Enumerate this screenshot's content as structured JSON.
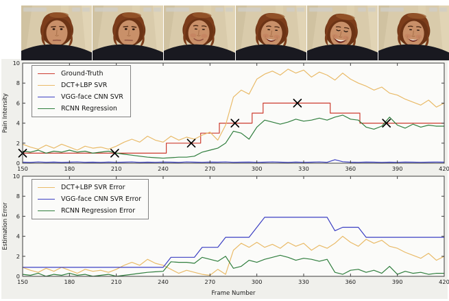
{
  "video_strip": {
    "description": "six cropped video frames of a woman's face showing increasing pain expression",
    "frames": [
      {
        "tilt": 0,
        "dx": 0,
        "dy": 0,
        "eyes": "open",
        "mouth": "neutral",
        "brow": "low"
      },
      {
        "tilt": 2,
        "dx": 1,
        "dy": 0,
        "eyes": "open",
        "mouth": "neutral",
        "brow": "low"
      },
      {
        "tilt": 3,
        "dx": -1,
        "dy": 0,
        "eyes": "narrow",
        "mouth": "smile",
        "brow": "neutral"
      },
      {
        "tilt": 5,
        "dx": 0,
        "dy": 1,
        "eyes": "narrow",
        "mouth": "open-smile",
        "brow": "neutral"
      },
      {
        "tilt": 8,
        "dx": -3,
        "dy": 2,
        "eyes": "closed",
        "mouth": "open-smile-big",
        "brow": "neutral"
      },
      {
        "tilt": 4,
        "dx": -1,
        "dy": 1,
        "eyes": "narrow",
        "mouth": "open-smile",
        "brow": "neutral"
      }
    ]
  },
  "chart_data": [
    {
      "type": "line",
      "title": "",
      "xlabel": "",
      "ylabel": "Pain Intensity",
      "xlim": [
        150,
        420
      ],
      "ylim": [
        0,
        10
      ],
      "xticks": [
        150,
        180,
        210,
        240,
        270,
        300,
        330,
        360,
        390,
        420
      ],
      "yticks": [
        0,
        2,
        4,
        6,
        8,
        10
      ],
      "grid": false,
      "legend_position": "upper left",
      "x_start": 150,
      "x_step": 5,
      "series": [
        {
          "name": "Ground-Truth",
          "color": "#cc3b2e",
          "style": "step",
          "x": [
            150,
            242,
            242,
            264,
            264,
            276,
            276,
            297,
            297,
            304,
            304,
            347,
            347,
            366,
            366,
            420
          ],
          "y": [
            1,
            1,
            2,
            2,
            3,
            3,
            4,
            4,
            5,
            5,
            6,
            6,
            5,
            5,
            4,
            4
          ]
        },
        {
          "name": "DCT+LBP SVR",
          "color": "#e9ba67",
          "values": [
            1.9,
            1.6,
            1.4,
            1.8,
            1.5,
            1.9,
            1.6,
            1.3,
            1.7,
            1.5,
            1.6,
            1.4,
            1.7,
            2.1,
            2.4,
            2.1,
            2.7,
            2.3,
            2.1,
            2.7,
            2.3,
            2.6,
            2.4,
            2.8,
            3.1,
            2.3,
            3.8,
            6.6,
            7.3,
            6.9,
            8.4,
            8.9,
            9.2,
            8.8,
            9.4,
            9.0,
            9.3,
            8.6,
            9.1,
            8.8,
            8.3,
            9.0,
            8.4,
            8.0,
            7.7,
            7.3,
            7.6,
            7.0,
            6.8,
            6.4,
            6.1,
            5.8,
            6.3,
            5.6,
            6.0
          ]
        },
        {
          "name": "VGG-face CNN SVR",
          "color": "#3a3ec2",
          "values": [
            0.1,
            0.08,
            0.12,
            0.09,
            0.11,
            0.08,
            0.1,
            0.12,
            0.09,
            0.1,
            0.08,
            0.11,
            0.09,
            0.1,
            0.12,
            0.08,
            0.1,
            0.09,
            0.11,
            0.1,
            0.08,
            0.12,
            0.1,
            0.09,
            0.11,
            0.1,
            0.12,
            0.09,
            0.1,
            0.11,
            0.09,
            0.1,
            0.12,
            0.1,
            0.08,
            0.11,
            0.09,
            0.1,
            0.12,
            0.09,
            0.35,
            0.15,
            0.1,
            0.09,
            0.11,
            0.1,
            0.08,
            0.1,
            0.09,
            0.11,
            0.1,
            0.09,
            0.1,
            0.11,
            0.1
          ]
        },
        {
          "name": "RCNN Regression",
          "color": "#2e7d3c",
          "values": [
            1.2,
            1.1,
            1.3,
            1.0,
            1.2,
            1.1,
            1.3,
            1.1,
            1.2,
            1.0,
            1.1,
            1.2,
            1.0,
            0.9,
            0.8,
            0.7,
            0.6,
            0.55,
            0.5,
            0.55,
            0.6,
            0.6,
            0.7,
            1.1,
            1.3,
            1.5,
            2.0,
            3.2,
            3.0,
            2.4,
            3.6,
            4.3,
            4.1,
            3.9,
            4.1,
            4.4,
            4.2,
            4.3,
            4.5,
            4.3,
            4.6,
            4.8,
            4.4,
            4.3,
            3.6,
            3.4,
            3.7,
            4.6,
            3.8,
            3.5,
            3.9,
            3.6,
            3.8,
            3.7,
            3.7
          ]
        }
      ],
      "markers": {
        "symbol": "x",
        "color": "#000000",
        "points": [
          [
            150,
            1
          ],
          [
            209,
            1
          ],
          [
            258,
            2
          ],
          [
            286,
            4
          ],
          [
            326,
            6
          ],
          [
            383,
            4
          ]
        ]
      }
    },
    {
      "type": "line",
      "title": "",
      "xlabel": "Frame Number",
      "ylabel": "Estimation Error",
      "xlim": [
        150,
        420
      ],
      "ylim": [
        0,
        10
      ],
      "xticks": [
        150,
        180,
        210,
        240,
        270,
        300,
        330,
        360,
        390,
        420
      ],
      "yticks": [
        0,
        2,
        4,
        6,
        8,
        10
      ],
      "grid": false,
      "legend_position": "upper left",
      "x_start": 150,
      "x_step": 5,
      "series": [
        {
          "name": "DCT+LBP SVR Error",
          "color": "#e9ba67",
          "values": [
            0.9,
            0.6,
            0.4,
            0.8,
            0.5,
            0.9,
            0.6,
            0.3,
            0.7,
            0.5,
            0.6,
            0.4,
            0.7,
            1.1,
            1.4,
            1.1,
            1.7,
            1.3,
            1.1,
            0.7,
            0.3,
            0.6,
            0.4,
            0.2,
            0.1,
            0.7,
            0.2,
            2.6,
            3.3,
            2.9,
            3.4,
            2.9,
            3.2,
            2.8,
            3.4,
            3.0,
            3.3,
            2.6,
            3.1,
            2.8,
            3.3,
            4.0,
            3.4,
            3.0,
            3.7,
            3.3,
            3.6,
            3.0,
            2.8,
            2.4,
            2.1,
            1.8,
            2.3,
            1.6,
            2.0
          ]
        },
        {
          "name": "VGG-face CNN SVR Error",
          "color": "#3a3ec2",
          "values": [
            0.9,
            0.9,
            0.9,
            0.9,
            0.9,
            0.9,
            0.9,
            0.9,
            0.9,
            0.9,
            0.9,
            0.9,
            0.9,
            0.9,
            0.9,
            0.9,
            0.9,
            0.9,
            0.9,
            1.9,
            1.9,
            1.9,
            1.9,
            2.9,
            2.9,
            2.9,
            3.9,
            3.9,
            3.9,
            3.9,
            4.9,
            5.9,
            5.9,
            5.9,
            5.9,
            5.9,
            5.9,
            5.9,
            5.9,
            5.9,
            4.55,
            4.9,
            4.9,
            4.9,
            3.9,
            3.9,
            3.9,
            3.9,
            3.9,
            3.9,
            3.9,
            3.9,
            3.9,
            3.9,
            3.9
          ]
        },
        {
          "name": "RCNN Regression Error",
          "color": "#2e7d3c",
          "values": [
            0.2,
            0.1,
            0.3,
            0.0,
            0.2,
            0.1,
            0.3,
            0.1,
            0.2,
            0.0,
            0.1,
            0.2,
            0.0,
            0.1,
            0.2,
            0.3,
            0.4,
            0.45,
            0.5,
            1.45,
            1.4,
            1.4,
            1.3,
            1.9,
            1.7,
            1.5,
            2.0,
            0.8,
            1.0,
            1.6,
            1.4,
            1.7,
            1.9,
            2.1,
            1.9,
            1.6,
            1.8,
            1.7,
            1.5,
            1.7,
            0.4,
            0.2,
            0.6,
            0.7,
            0.4,
            0.6,
            0.3,
            1.0,
            0.2,
            0.5,
            0.3,
            0.4,
            0.2,
            0.3,
            0.3
          ]
        }
      ]
    }
  ]
}
